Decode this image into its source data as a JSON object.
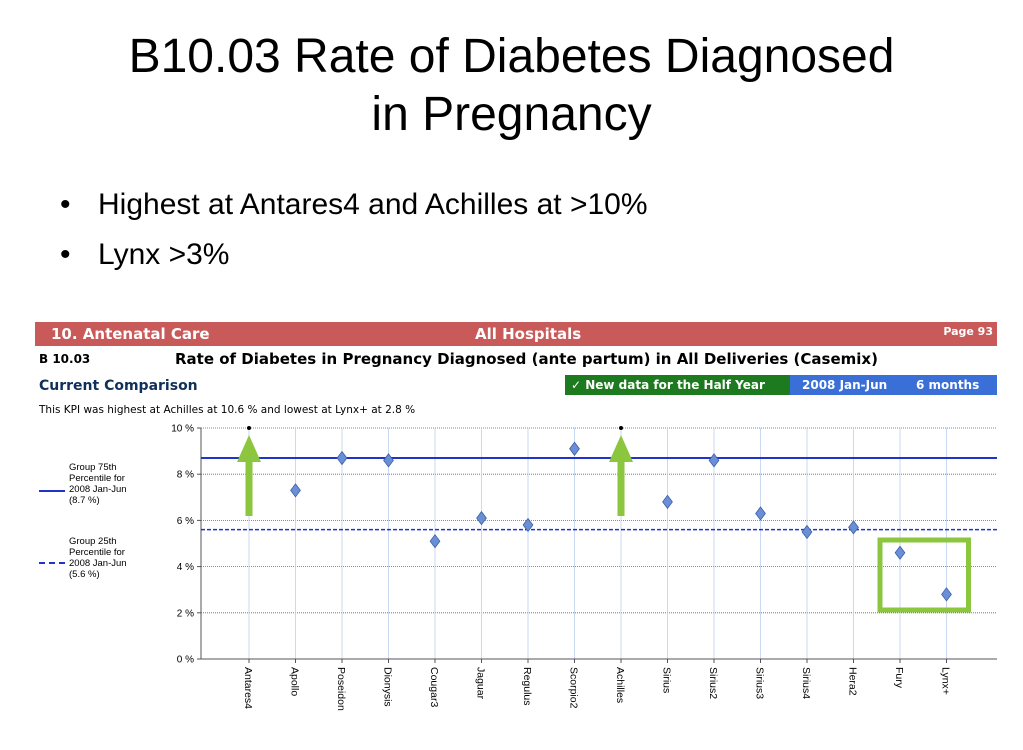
{
  "slide": {
    "title_line1": "B10.03 Rate of Diabetes Diagnosed",
    "title_line2": "in Pregnancy",
    "bullets": [
      "Highest at Antares4 and Achilles at >10%",
      "Lynx >3%"
    ],
    "bullet_marker": "•"
  },
  "report": {
    "section": "10. Antenatal Care",
    "hospitals": "All Hospitals",
    "page": "Page 93",
    "code": "B 10.03",
    "kpi_title": "Rate of Diabetes in Pregnancy Diagnosed (ante partum) in All Deliveries (Casemix)",
    "current_comparison": "Current Comparison",
    "new_data": "✓ New data for the Half Year",
    "period": "2008 Jan-Jun",
    "months": "6 months",
    "note": "This KPI was highest at Achilles at 10.6 % and lowest at Lynx+ at 2.8 %",
    "colors": {
      "header_red": "#c85a5a",
      "new_data_green": "#1e7a1e",
      "period_blue": "#3a6fd8",
      "line_blue": "#2233cc",
      "marker": "#6b8fd6",
      "arrow_green": "#8cc63f"
    }
  },
  "legend": {
    "p75": [
      "Group 75th",
      "Percentile for",
      "2008 Jan-Jun",
      "(8.7 %)"
    ],
    "p25": [
      "Group 25th",
      "Percentile for",
      "2008 Jan-Jun",
      "(5.6 %)"
    ]
  },
  "chart_data": {
    "type": "scatter",
    "categories": [
      "Antares4",
      "Apollo",
      "Poseidon",
      "Dionysis",
      "Cougar3",
      "Jaguar",
      "Regulus",
      "Scorpio2",
      "Achilles",
      "Sirius",
      "Sirius2",
      "Sirius3",
      "Sirius4",
      "Hera2",
      "Fury",
      "Lynx+"
    ],
    "values": [
      10.6,
      7.3,
      8.7,
      8.6,
      5.1,
      6.1,
      5.8,
      9.1,
      10.6,
      6.8,
      8.6,
      6.3,
      5.5,
      5.7,
      4.6,
      2.8
    ],
    "offscale": [
      true,
      false,
      false,
      false,
      false,
      false,
      false,
      false,
      true,
      false,
      false,
      false,
      false,
      false,
      false,
      false
    ],
    "ylim": [
      0,
      10
    ],
    "yticks": [
      0,
      2,
      4,
      6,
      8,
      10
    ],
    "ytick_labels": [
      "0 %",
      "2 %",
      "4 %",
      "6 %",
      "8 %",
      "10 %"
    ],
    "reference_lines": [
      {
        "name": "Group 75th Percentile for 2008 Jan-Jun (8.7 %)",
        "value": 8.7,
        "style": "solid"
      },
      {
        "name": "Group 25th Percentile for 2008 Jan-Jun (5.6 %)",
        "value": 5.6,
        "style": "dashed"
      }
    ],
    "highlight_arrows": [
      "Antares4",
      "Achilles"
    ],
    "highlight_box": [
      "Fury",
      "Lynx+"
    ],
    "grid": true
  }
}
